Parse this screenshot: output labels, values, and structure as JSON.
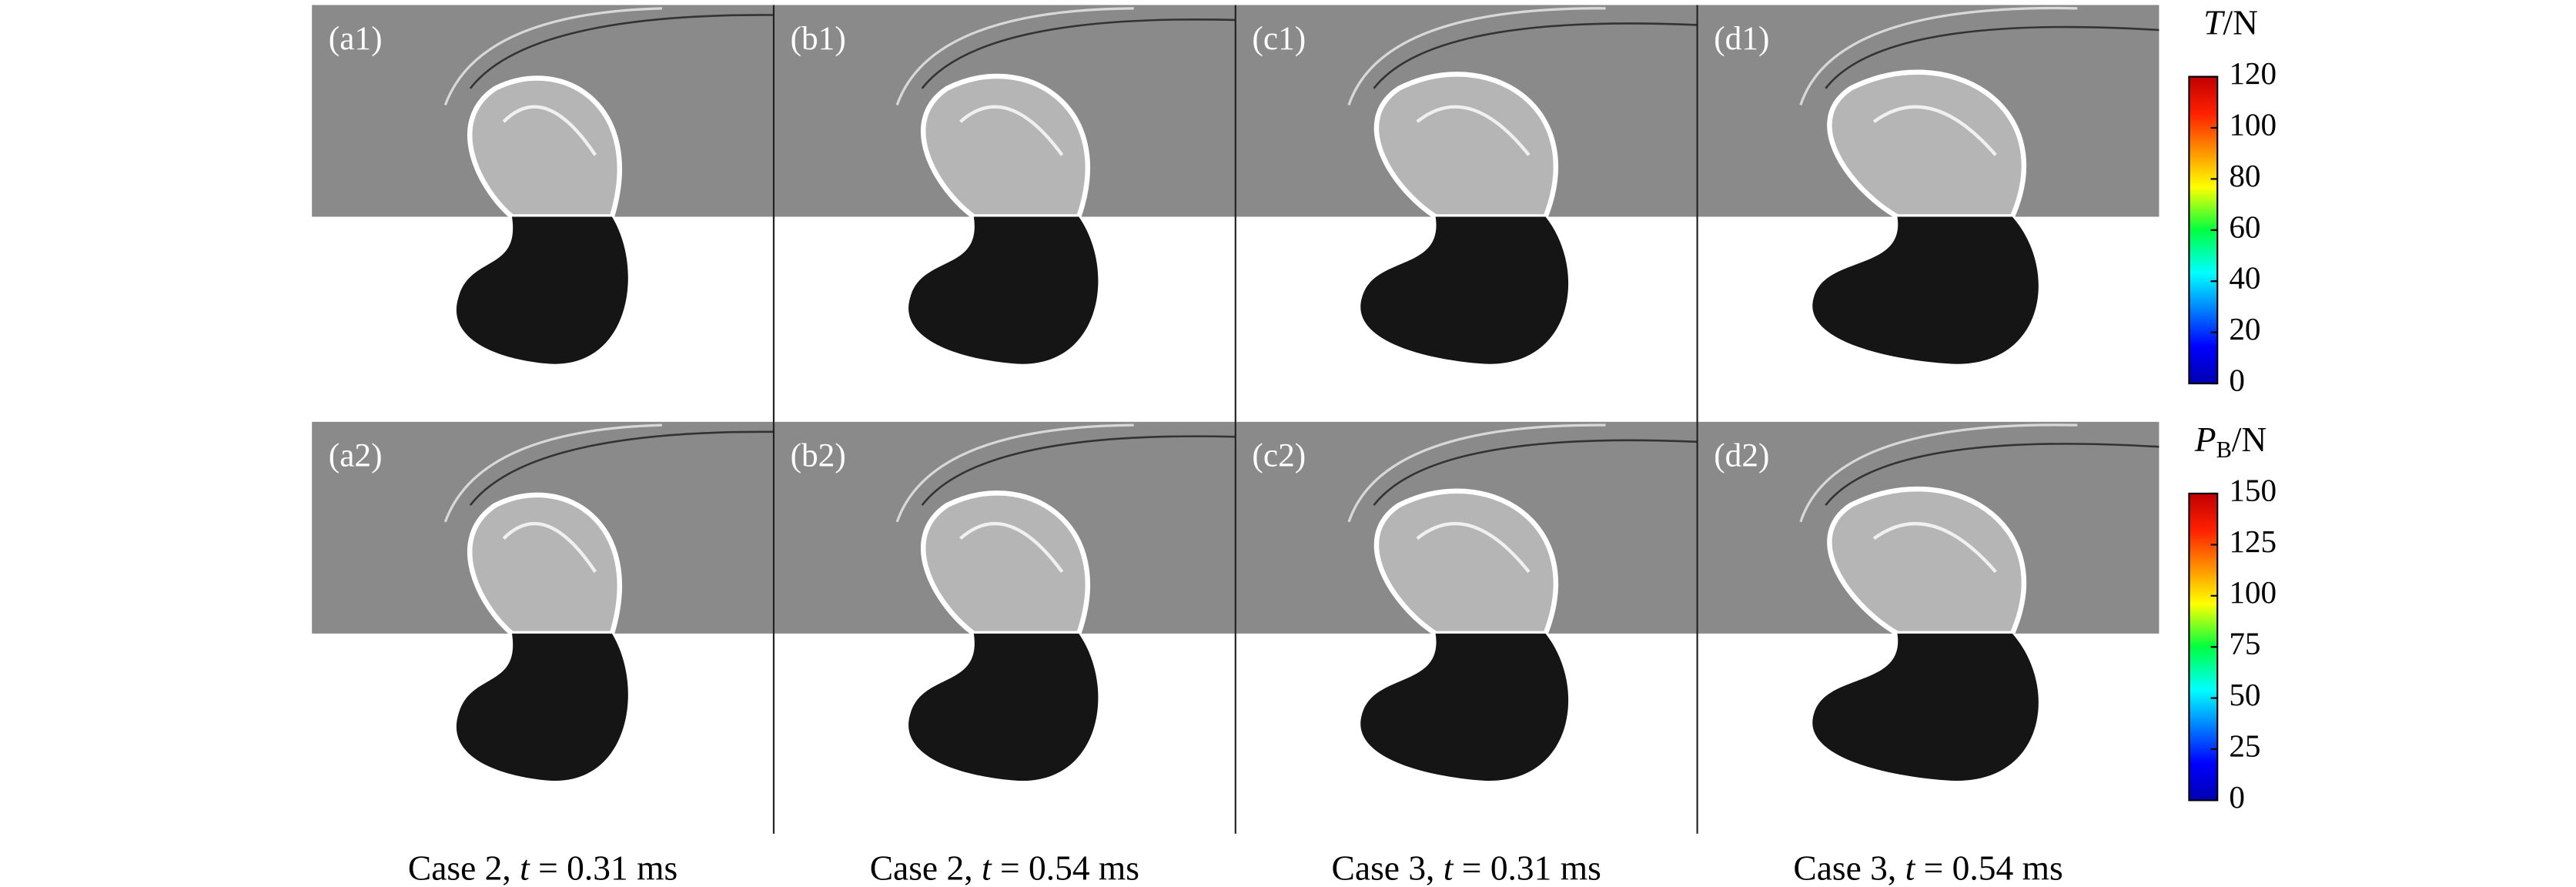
{
  "panels": [
    {
      "label": "(a1)"
    },
    {
      "label": "(b1)"
    },
    {
      "label": "(c1)"
    },
    {
      "label": "(d1)"
    },
    {
      "label": "(a2)"
    },
    {
      "label": "(b2)"
    },
    {
      "label": "(c2)"
    },
    {
      "label": "(d2)"
    }
  ],
  "captions": [
    {
      "prefix": "Case 2,",
      "symbol": "t",
      "rest": "= 0.31 ms"
    },
    {
      "prefix": "Case 2,",
      "symbol": "t",
      "rest": "= 0.54 ms"
    },
    {
      "prefix": "Case 3,",
      "symbol": "t",
      "rest": "= 0.31 ms"
    },
    {
      "prefix": "Case 3,",
      "symbol": "t",
      "rest": "= 0.54 ms"
    }
  ],
  "colorbars": [
    {
      "symbol": "T",
      "unit": "/N",
      "lim": [
        0,
        120
      ],
      "ticks": [
        0,
        20,
        40,
        60,
        80,
        100,
        120
      ]
    },
    {
      "symbol": "P",
      "subscript": "B",
      "unit": "/N",
      "lim": [
        0,
        150
      ],
      "ticks": [
        0,
        25,
        50,
        75,
        100,
        125,
        150
      ]
    }
  ]
}
